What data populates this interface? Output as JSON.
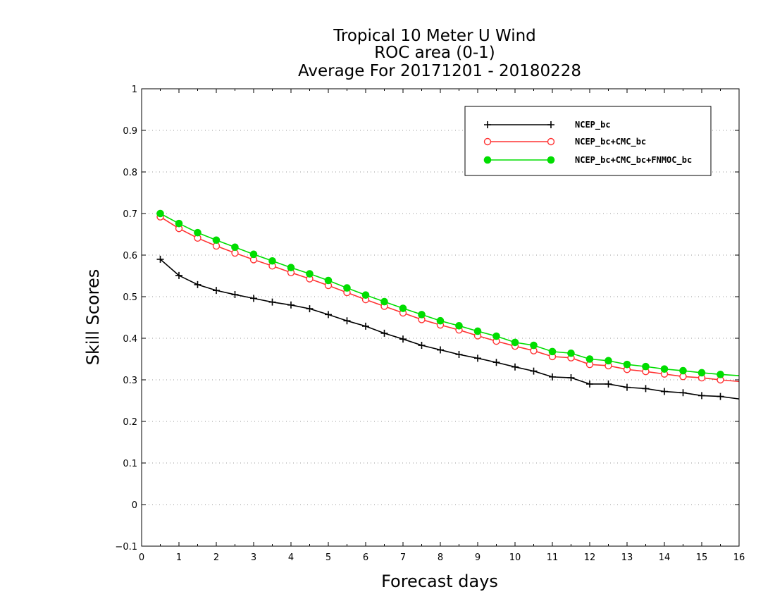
{
  "chart_data": {
    "type": "line",
    "title": [
      "Tropical 10 Meter U Wind",
      "ROC area (0-1)",
      "Average For 20171201 - 20180228"
    ],
    "xlabel": "Forecast days",
    "ylabel": "Skill Scores",
    "xlim": [
      0,
      16
    ],
    "ylim": [
      -0.1,
      1
    ],
    "xticks": [
      "0",
      "1",
      "2",
      "3",
      "4",
      "5",
      "6",
      "7",
      "8",
      "9",
      "10",
      "11",
      "12",
      "13",
      "14",
      "15",
      "16"
    ],
    "yticks": [
      "−0.1",
      "0",
      "0.1",
      "0.2",
      "0.3",
      "0.4",
      "0.5",
      "0.6",
      "0.7",
      "0.8",
      "0.9",
      "1"
    ],
    "grid": true,
    "legend_position": "top-right",
    "x": [
      0.5,
      1,
      1.5,
      2,
      2.5,
      3,
      3.5,
      4,
      4.5,
      5,
      5.5,
      6,
      6.5,
      7,
      7.5,
      8,
      8.5,
      9,
      9.5,
      10,
      10.5,
      11,
      11.5,
      12,
      12.5,
      13,
      13.5,
      14,
      14.5,
      15,
      15.5,
      16
    ],
    "series": [
      {
        "name": "NCEP_bc",
        "color": "#000000",
        "marker": "plus",
        "values": [
          0.59,
          0.551,
          0.529,
          0.515,
          0.505,
          0.496,
          0.487,
          0.48,
          0.471,
          0.457,
          0.442,
          0.429,
          0.412,
          0.398,
          0.383,
          0.372,
          0.361,
          0.352,
          0.342,
          0.331,
          0.321,
          0.307,
          0.305,
          0.29,
          0.29,
          0.282,
          0.279,
          0.272,
          0.269,
          0.262,
          0.26,
          0.254
        ]
      },
      {
        "name": "NCEP_bc+CMC_bc",
        "color": "#ff3333",
        "marker": "open-circle",
        "values": [
          0.692,
          0.664,
          0.641,
          0.622,
          0.605,
          0.589,
          0.574,
          0.558,
          0.543,
          0.527,
          0.51,
          0.493,
          0.477,
          0.461,
          0.445,
          0.432,
          0.42,
          0.406,
          0.393,
          0.381,
          0.37,
          0.356,
          0.353,
          0.337,
          0.334,
          0.325,
          0.32,
          0.314,
          0.308,
          0.305,
          0.3,
          0.296
        ]
      },
      {
        "name": "NCEP_bc+CMC_bc+FNMOC_bc",
        "color": "#00dd00",
        "marker": "filled-circle",
        "values": [
          0.7,
          0.676,
          0.654,
          0.636,
          0.619,
          0.602,
          0.586,
          0.57,
          0.555,
          0.539,
          0.521,
          0.504,
          0.488,
          0.472,
          0.457,
          0.442,
          0.43,
          0.417,
          0.405,
          0.39,
          0.383,
          0.368,
          0.364,
          0.35,
          0.346,
          0.337,
          0.332,
          0.326,
          0.322,
          0.317,
          0.313,
          0.31
        ]
      }
    ]
  }
}
